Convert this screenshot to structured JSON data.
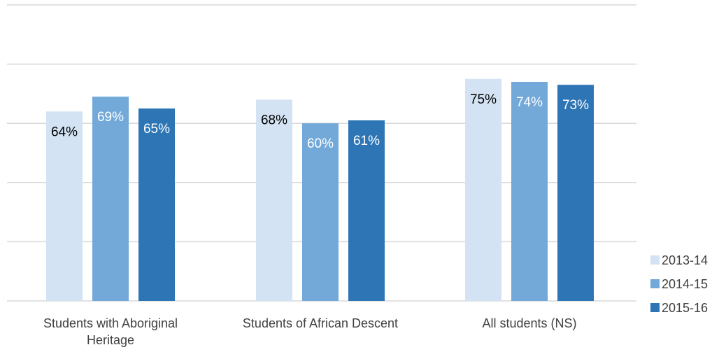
{
  "chart_data": {
    "type": "bar",
    "title": "",
    "xlabel": "",
    "ylabel": "",
    "ylim": [
      0,
      100
    ],
    "y_gridlines": [
      0,
      20,
      40,
      60,
      80,
      100
    ],
    "y_tick_labels_shown": false,
    "grid": true,
    "legend_position": "right",
    "categories": [
      [
        "Students with Aboriginal",
        "Heritage"
      ],
      [
        "Students of African Descent"
      ],
      [
        "All students (NS)"
      ]
    ],
    "series": [
      {
        "name": "2013-14",
        "color": "#d3e3f3",
        "label_color": "#000000",
        "values": [
          64,
          68,
          75
        ],
        "labels": [
          "64%",
          "68%",
          "75%"
        ]
      },
      {
        "name": "2014-15",
        "color": "#72a9d9",
        "label_color": "#ffffff",
        "values": [
          69,
          60,
          74
        ],
        "labels": [
          "69%",
          "60%",
          "74%"
        ]
      },
      {
        "name": "2015-16",
        "color": "#2e75b6",
        "label_color": "#ffffff",
        "values": [
          65,
          61,
          73
        ],
        "labels": [
          "65%",
          "61%",
          "73%"
        ]
      }
    ]
  }
}
